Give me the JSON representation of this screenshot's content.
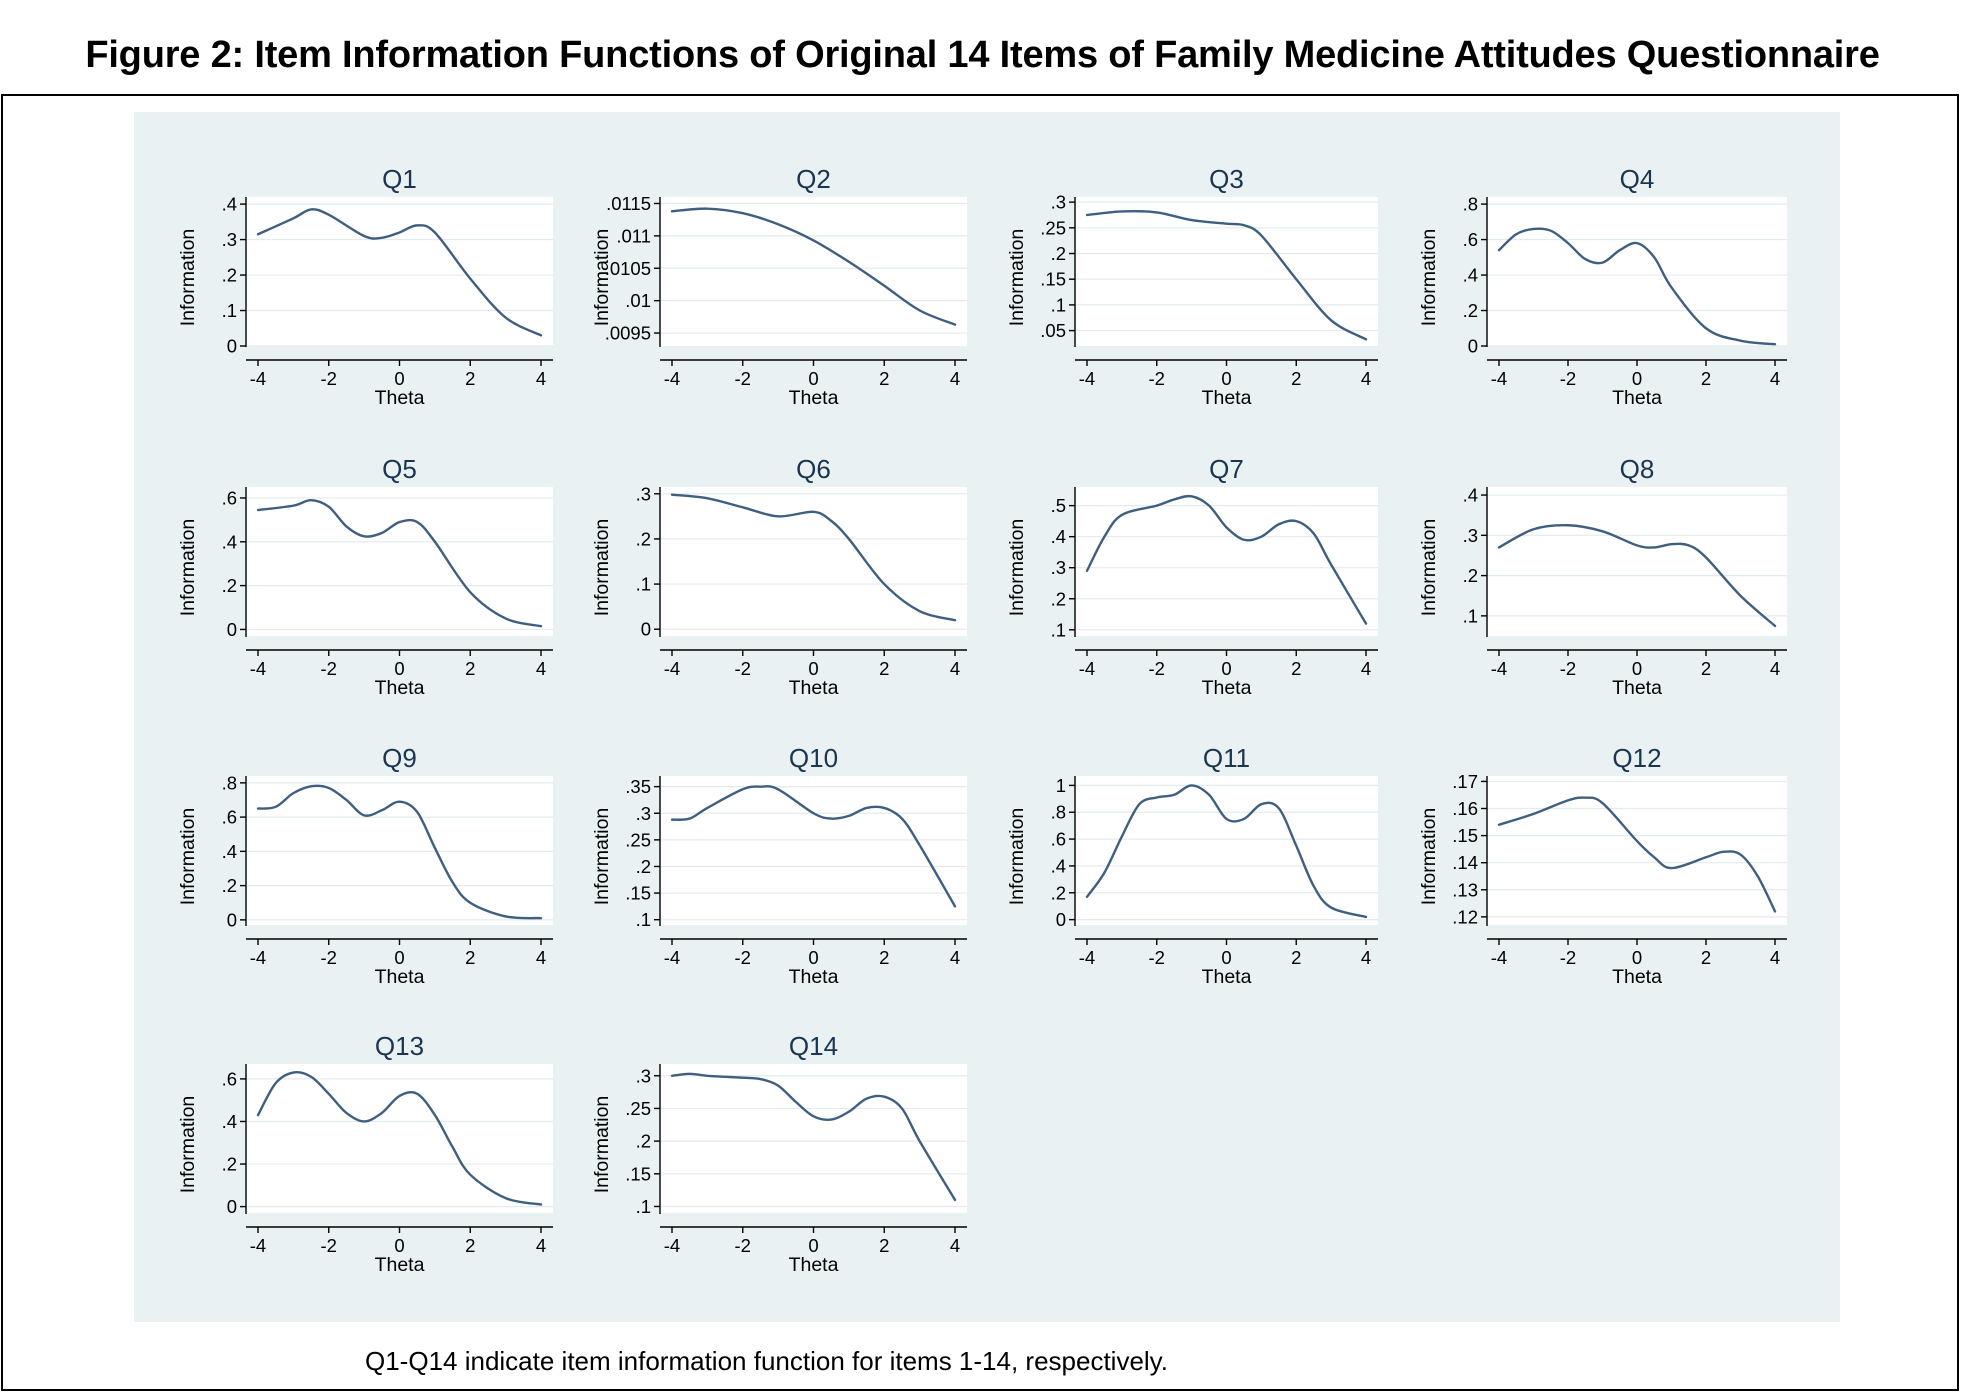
{
  "figure": {
    "title": "Figure 2: Item Information Functions of Original 14 Items of Family Medicine Attitudes Questionnaire",
    "caption": "Q1-Q14 indicate item information function for items 1-14, respectively."
  },
  "colors": {
    "line": "#3f5f80",
    "panel_background": "#eaf1f3",
    "plot_background": "#ffffff",
    "grid": "#e4ebee"
  },
  "chart_data": [
    {
      "type": "line",
      "title": "Q1",
      "xlabel": "Theta",
      "ylabel": "Information",
      "xlim": [
        -4,
        4
      ],
      "ylim": [
        0,
        0.42
      ],
      "xticks": [
        -4,
        -2,
        0,
        2,
        4
      ],
      "xtick_labels": [
        "-4",
        "-2",
        "0",
        "2",
        "4"
      ],
      "yticks": [
        0,
        0.1,
        0.2,
        0.3,
        0.4
      ],
      "ytick_labels": [
        "0",
        ".1",
        ".2",
        ".3",
        ".4"
      ],
      "x": [
        -4,
        -3,
        -2.5,
        -2,
        -1,
        -0.5,
        0,
        0.5,
        1,
        2,
        3,
        4
      ],
      "y": [
        0.315,
        0.36,
        0.385,
        0.37,
        0.31,
        0.305,
        0.32,
        0.34,
        0.32,
        0.19,
        0.08,
        0.03
      ]
    },
    {
      "type": "line",
      "title": "Q2",
      "xlabel": "Theta",
      "ylabel": "Information",
      "xlim": [
        -4,
        4
      ],
      "ylim": [
        0.0093,
        0.0116
      ],
      "xticks": [
        -4,
        -2,
        0,
        2,
        4
      ],
      "xtick_labels": [
        "-4",
        "-2",
        "0",
        "2",
        "4"
      ],
      "yticks": [
        0.0095,
        0.01,
        0.0105,
        0.011,
        0.0115
      ],
      "ytick_labels": [
        ".0095",
        ".01",
        ".0105",
        ".011",
        ".0115"
      ],
      "x": [
        -4,
        -3,
        -2,
        -1,
        0,
        1,
        2,
        3,
        4
      ],
      "y": [
        0.01138,
        0.01142,
        0.01135,
        0.01118,
        0.01093,
        0.0106,
        0.01023,
        0.00985,
        0.00963
      ]
    },
    {
      "type": "line",
      "title": "Q3",
      "xlabel": "Theta",
      "ylabel": "Information",
      "xlim": [
        -4,
        4
      ],
      "ylim": [
        0.02,
        0.31
      ],
      "xticks": [
        -4,
        -2,
        0,
        2,
        4
      ],
      "xtick_labels": [
        "-4",
        "-2",
        "0",
        "2",
        "4"
      ],
      "yticks": [
        0.05,
        0.1,
        0.15,
        0.2,
        0.25,
        0.3
      ],
      "ytick_labels": [
        ".05",
        ".1",
        ".15",
        ".2",
        ".25",
        ".3"
      ],
      "x": [
        -4,
        -3,
        -2,
        -1,
        0,
        0.5,
        1,
        2,
        3,
        4
      ],
      "y": [
        0.275,
        0.282,
        0.28,
        0.265,
        0.258,
        0.255,
        0.235,
        0.15,
        0.07,
        0.033
      ]
    },
    {
      "type": "line",
      "title": "Q4",
      "xlabel": "Theta",
      "ylabel": "Information",
      "xlim": [
        -4,
        4
      ],
      "ylim": [
        0,
        0.84
      ],
      "xticks": [
        -4,
        -2,
        0,
        2,
        4
      ],
      "xtick_labels": [
        "-4",
        "-2",
        "0",
        "2",
        "4"
      ],
      "yticks": [
        0,
        0.2,
        0.4,
        0.6,
        0.8
      ],
      "ytick_labels": [
        "0",
        ".2",
        ".4",
        ".6",
        ".8"
      ],
      "x": [
        -4,
        -3.5,
        -3,
        -2.5,
        -2,
        -1.5,
        -1,
        -0.5,
        0,
        0.5,
        1,
        2,
        3,
        4
      ],
      "y": [
        0.54,
        0.63,
        0.66,
        0.65,
        0.58,
        0.49,
        0.47,
        0.54,
        0.58,
        0.5,
        0.33,
        0.1,
        0.03,
        0.01
      ]
    },
    {
      "type": "line",
      "title": "Q5",
      "xlabel": "Theta",
      "ylabel": "Information",
      "xlim": [
        -4,
        4
      ],
      "ylim": [
        -0.03,
        0.65
      ],
      "xticks": [
        -4,
        -2,
        0,
        2,
        4
      ],
      "xtick_labels": [
        "-4",
        "-2",
        "0",
        "2",
        "4"
      ],
      "yticks": [
        0,
        0.2,
        0.4,
        0.6
      ],
      "ytick_labels": [
        "0",
        ".2",
        ".4",
        ".6"
      ],
      "x": [
        -4,
        -3,
        -2.5,
        -2,
        -1.5,
        -1,
        -0.5,
        0,
        0.5,
        1,
        2,
        3,
        4
      ],
      "y": [
        0.545,
        0.565,
        0.59,
        0.56,
        0.47,
        0.425,
        0.44,
        0.49,
        0.49,
        0.4,
        0.17,
        0.05,
        0.015
      ]
    },
    {
      "type": "line",
      "title": "Q6",
      "xlabel": "Theta",
      "ylabel": "Information",
      "xlim": [
        -4,
        4
      ],
      "ylim": [
        -0.015,
        0.315
      ],
      "xticks": [
        -4,
        -2,
        0,
        2,
        4
      ],
      "xtick_labels": [
        "-4",
        "-2",
        "0",
        "2",
        "4"
      ],
      "yticks": [
        0,
        0.1,
        0.2,
        0.3
      ],
      "ytick_labels": [
        "0",
        ".1",
        ".2",
        ".3"
      ],
      "x": [
        -4,
        -3,
        -2,
        -1,
        0,
        0.5,
        1,
        2,
        3,
        4
      ],
      "y": [
        0.298,
        0.29,
        0.27,
        0.25,
        0.26,
        0.24,
        0.2,
        0.1,
        0.04,
        0.02
      ]
    },
    {
      "type": "line",
      "title": "Q7",
      "xlabel": "Theta",
      "ylabel": "Information",
      "xlim": [
        -4,
        4
      ],
      "ylim": [
        0.08,
        0.56
      ],
      "xticks": [
        -4,
        -2,
        0,
        2,
        4
      ],
      "xtick_labels": [
        "-4",
        "-2",
        "0",
        "2",
        "4"
      ],
      "yticks": [
        0.1,
        0.2,
        0.3,
        0.4,
        0.5
      ],
      "ytick_labels": [
        ".1",
        ".2",
        ".3",
        ".4",
        ".5"
      ],
      "x": [
        -4,
        -3.5,
        -3,
        -2,
        -1.5,
        -1,
        -0.5,
        0,
        0.5,
        1,
        1.5,
        2,
        2.5,
        3,
        4
      ],
      "y": [
        0.29,
        0.4,
        0.47,
        0.5,
        0.52,
        0.53,
        0.5,
        0.43,
        0.39,
        0.4,
        0.44,
        0.45,
        0.41,
        0.31,
        0.12
      ]
    },
    {
      "type": "line",
      "title": "Q8",
      "xlabel": "Theta",
      "ylabel": "Information",
      "xlim": [
        -4,
        4
      ],
      "ylim": [
        0.05,
        0.42
      ],
      "xticks": [
        -4,
        -2,
        0,
        2,
        4
      ],
      "xtick_labels": [
        "-4",
        "-2",
        "0",
        "2",
        "4"
      ],
      "yticks": [
        0.1,
        0.2,
        0.3,
        0.4
      ],
      "ytick_labels": [
        ".1",
        ".2",
        ".3",
        ".4"
      ],
      "x": [
        -4,
        -3,
        -2,
        -1,
        0,
        0.5,
        1,
        1.5,
        2,
        3,
        4
      ],
      "y": [
        0.27,
        0.315,
        0.325,
        0.31,
        0.275,
        0.27,
        0.278,
        0.275,
        0.245,
        0.15,
        0.075
      ]
    },
    {
      "type": "line",
      "title": "Q9",
      "xlabel": "Theta",
      "ylabel": "Information",
      "xlim": [
        -4,
        4
      ],
      "ylim": [
        -0.03,
        0.84
      ],
      "xticks": [
        -4,
        -2,
        0,
        2,
        4
      ],
      "xtick_labels": [
        "-4",
        "-2",
        "0",
        "2",
        "4"
      ],
      "yticks": [
        0,
        0.2,
        0.4,
        0.6,
        0.8
      ],
      "ytick_labels": [
        "0",
        ".2",
        ".4",
        ".6",
        ".8"
      ],
      "x": [
        -4,
        -3.5,
        -3,
        -2.5,
        -2,
        -1.5,
        -1,
        -0.5,
        0,
        0.5,
        1,
        1.5,
        2,
        3,
        4
      ],
      "y": [
        0.65,
        0.66,
        0.74,
        0.78,
        0.77,
        0.7,
        0.61,
        0.64,
        0.69,
        0.63,
        0.42,
        0.22,
        0.1,
        0.02,
        0.01
      ]
    },
    {
      "type": "line",
      "title": "Q10",
      "xlabel": "Theta",
      "ylabel": "Information",
      "xlim": [
        -4,
        4
      ],
      "ylim": [
        0.09,
        0.37
      ],
      "xticks": [
        -4,
        -2,
        0,
        2,
        4
      ],
      "xtick_labels": [
        "-4",
        "-2",
        "0",
        "2",
        "4"
      ],
      "yticks": [
        0.1,
        0.15,
        0.2,
        0.25,
        0.3,
        0.35
      ],
      "ytick_labels": [
        ".1",
        ".15",
        ".2",
        ".25",
        ".3",
        ".35"
      ],
      "x": [
        -4,
        -3.5,
        -3,
        -2,
        -1.5,
        -1,
        0,
        0.5,
        1,
        1.5,
        2,
        2.5,
        3,
        4
      ],
      "y": [
        0.288,
        0.29,
        0.31,
        0.345,
        0.35,
        0.345,
        0.3,
        0.29,
        0.295,
        0.31,
        0.31,
        0.29,
        0.24,
        0.125
      ]
    },
    {
      "type": "line",
      "title": "Q11",
      "xlabel": "Theta",
      "ylabel": "Information",
      "xlim": [
        -4,
        4
      ],
      "ylim": [
        -0.04,
        1.07
      ],
      "xticks": [
        -4,
        -2,
        0,
        2,
        4
      ],
      "xtick_labels": [
        "-4",
        "-2",
        "0",
        "2",
        "4"
      ],
      "yticks": [
        0,
        0.2,
        0.4,
        0.6,
        0.8,
        1
      ],
      "ytick_labels": [
        "0",
        ".2",
        ".4",
        ".6",
        ".8",
        "1"
      ],
      "x": [
        -4,
        -3.5,
        -3,
        -2.5,
        -2,
        -1.5,
        -1,
        -0.5,
        0,
        0.5,
        1,
        1.5,
        2,
        2.5,
        3,
        4
      ],
      "y": [
        0.17,
        0.35,
        0.62,
        0.86,
        0.91,
        0.93,
        1.0,
        0.93,
        0.75,
        0.75,
        0.86,
        0.83,
        0.55,
        0.25,
        0.09,
        0.02
      ]
    },
    {
      "type": "line",
      "title": "Q12",
      "xlabel": "Theta",
      "ylabel": "Information",
      "xlim": [
        -4,
        4
      ],
      "ylim": [
        0.117,
        0.172
      ],
      "xticks": [
        -4,
        -2,
        0,
        2,
        4
      ],
      "xtick_labels": [
        "-4",
        "-2",
        "0",
        "2",
        "4"
      ],
      "yticks": [
        0.12,
        0.13,
        0.14,
        0.15,
        0.16,
        0.17
      ],
      "ytick_labels": [
        ".12",
        ".13",
        ".14",
        ".15",
        ".16",
        ".17"
      ],
      "x": [
        -4,
        -3,
        -2,
        -1.5,
        -1,
        0,
        0.5,
        1,
        2,
        2.5,
        3,
        3.5,
        4
      ],
      "y": [
        0.154,
        0.158,
        0.163,
        0.164,
        0.162,
        0.148,
        0.142,
        0.138,
        0.142,
        0.144,
        0.143,
        0.135,
        0.122
      ]
    },
    {
      "type": "line",
      "title": "Q13",
      "xlabel": "Theta",
      "ylabel": "Information",
      "xlim": [
        -4,
        4
      ],
      "ylim": [
        -0.03,
        0.67
      ],
      "xticks": [
        -4,
        -2,
        0,
        2,
        4
      ],
      "xtick_labels": [
        "-4",
        "-2",
        "0",
        "2",
        "4"
      ],
      "yticks": [
        0,
        0.2,
        0.4,
        0.6
      ],
      "ytick_labels": [
        "0",
        ".2",
        ".4",
        ".6"
      ],
      "x": [
        -4,
        -3.5,
        -3,
        -2.5,
        -2,
        -1.5,
        -1,
        -0.5,
        0,
        0.5,
        1,
        1.5,
        2,
        3,
        4
      ],
      "y": [
        0.43,
        0.58,
        0.63,
        0.61,
        0.53,
        0.44,
        0.4,
        0.44,
        0.52,
        0.53,
        0.43,
        0.28,
        0.15,
        0.04,
        0.01
      ]
    },
    {
      "type": "line",
      "title": "Q14",
      "xlabel": "Theta",
      "ylabel": "Information",
      "xlim": [
        -4,
        4
      ],
      "ylim": [
        0.09,
        0.318
      ],
      "xticks": [
        -4,
        -2,
        0,
        2,
        4
      ],
      "xtick_labels": [
        "-4",
        "-2",
        "0",
        "2",
        "4"
      ],
      "yticks": [
        0.1,
        0.15,
        0.2,
        0.25,
        0.3
      ],
      "ytick_labels": [
        ".1",
        ".15",
        ".2",
        ".25",
        ".3"
      ],
      "x": [
        -4,
        -3.5,
        -3,
        -2,
        -1.5,
        -1,
        -0.5,
        0,
        0.5,
        1,
        1.5,
        2,
        2.5,
        3,
        4
      ],
      "y": [
        0.3,
        0.303,
        0.3,
        0.297,
        0.295,
        0.285,
        0.26,
        0.238,
        0.233,
        0.245,
        0.265,
        0.268,
        0.25,
        0.2,
        0.11
      ]
    }
  ]
}
